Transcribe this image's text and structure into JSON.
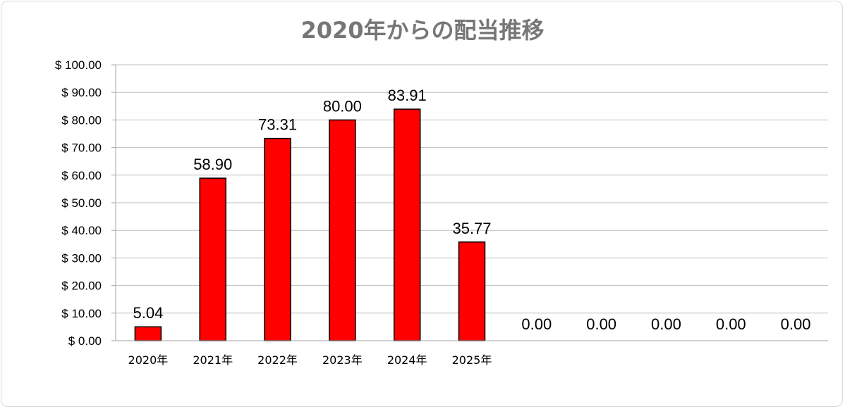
{
  "chart_data": {
    "type": "bar",
    "title": "2020年からの配当推移",
    "categories": [
      "2020年",
      "2021年",
      "2022年",
      "2023年",
      "2024年",
      "2025年",
      "",
      "",
      "",
      "",
      ""
    ],
    "values": [
      5.04,
      58.9,
      73.31,
      80.0,
      83.91,
      35.77,
      0.0,
      0.0,
      0.0,
      0.0,
      0.0
    ],
    "data_labels": [
      "5.04",
      "58.90",
      "73.31",
      "80.00",
      "83.91",
      "35.77",
      "0.00",
      "0.00",
      "0.00",
      "0.00",
      "0.00"
    ],
    "ylim": [
      0,
      100
    ],
    "yticks": [
      0,
      10,
      20,
      30,
      40,
      50,
      60,
      70,
      80,
      90,
      100
    ],
    "ytick_labels": [
      "$ 0.00",
      "$ 10.00",
      "$ 20.00",
      "$ 30.00",
      "$ 40.00",
      "$ 50.00",
      "$ 60.00",
      "$ 70.00",
      "$ 80.00",
      "$ 90.00",
      "$ 100.00"
    ],
    "xlabel": "",
    "ylabel": "",
    "grid": true,
    "bar_color": "#ff0000",
    "bar_edge_color": "#000000",
    "grid_color": "#bfbfbf"
  }
}
